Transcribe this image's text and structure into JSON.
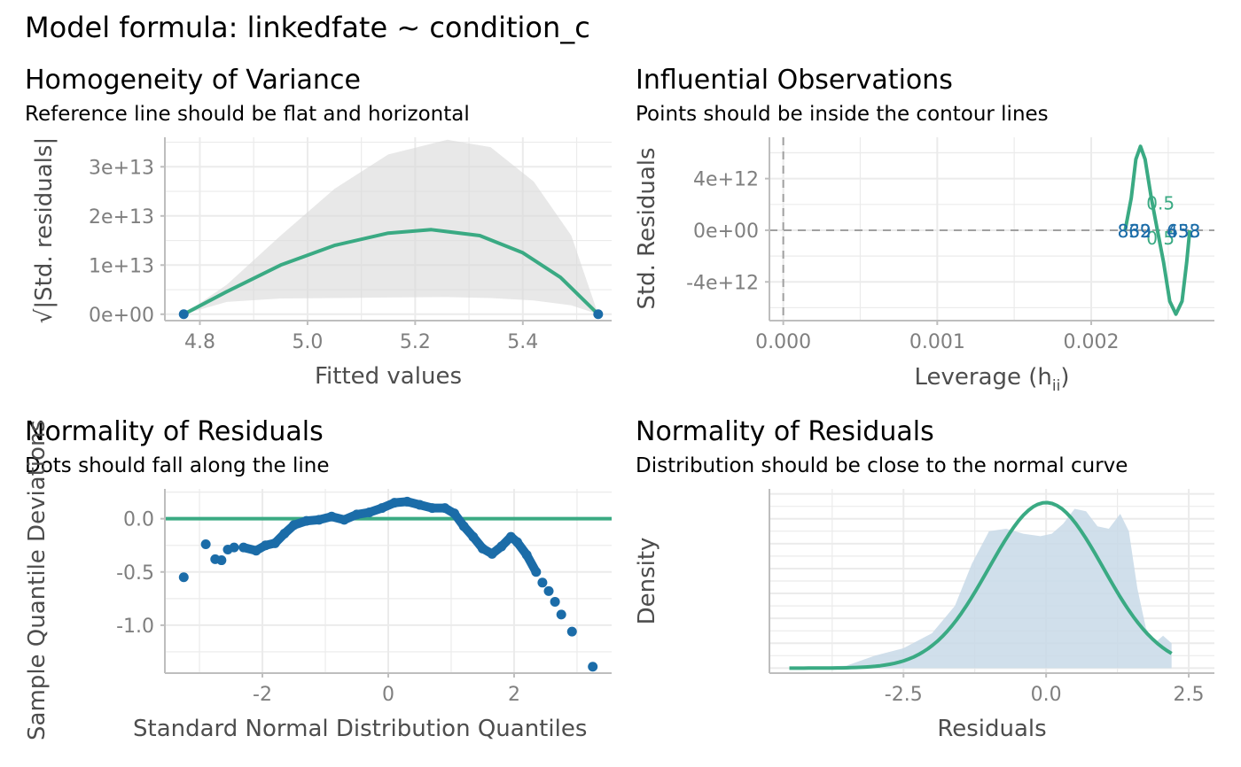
{
  "title": "Model formula: linkedfate ~ condition_c",
  "colors": {
    "accent": "#3aaa83",
    "points": "#1b6ca8",
    "band": "#d9d9d9",
    "density_fill": "#c8d9e8",
    "grid": "#ebebeb"
  },
  "chart_data": [
    {
      "type": "scatter",
      "title": "Homogeneity of Variance",
      "subtitle": "Reference line should be flat and horizontal",
      "xlabel": "Fitted values",
      "ylabel": "√|Std. residuals|",
      "xlim": [
        4.735,
        5.565
      ],
      "ylim": [
        -1300000000000.0,
        36000000000000.0
      ],
      "xticks": [
        4.8,
        5.0,
        5.2,
        5.4
      ],
      "xtick_labels": [
        "4.8",
        "5.0",
        "5.2",
        "5.4"
      ],
      "yticks": [
        0,
        10000000000000.0,
        20000000000000.0,
        30000000000000.0
      ],
      "ytick_labels": [
        "0e+00",
        "1e+13",
        "2e+13",
        "3e+13"
      ],
      "points": [
        [
          4.77,
          0
        ],
        [
          5.54,
          0
        ]
      ],
      "smooth_line": [
        [
          4.77,
          0
        ],
        [
          4.85,
          4600000000000.0
        ],
        [
          4.95,
          10000000000000.0
        ],
        [
          5.05,
          14000000000000.0
        ],
        [
          5.15,
          16500000000000.0
        ],
        [
          5.23,
          17200000000000.0
        ],
        [
          5.32,
          16000000000000.0
        ],
        [
          5.4,
          12500000000000.0
        ],
        [
          5.47,
          7500000000000.0
        ],
        [
          5.54,
          0
        ]
      ],
      "band_upper": [
        [
          4.77,
          0
        ],
        [
          4.85,
          6000000000000.0
        ],
        [
          4.95,
          16000000000000.0
        ],
        [
          5.05,
          25500000000000.0
        ],
        [
          5.15,
          32500000000000.0
        ],
        [
          5.26,
          35500000000000.0
        ],
        [
          5.34,
          34000000000000.0
        ],
        [
          5.42,
          27000000000000.0
        ],
        [
          5.49,
          16000000000000.0
        ],
        [
          5.54,
          0
        ]
      ],
      "band_lower": [
        [
          4.77,
          0
        ],
        [
          4.85,
          2500000000000.0
        ],
        [
          4.95,
          3200000000000.0
        ],
        [
          5.05,
          3300000000000.0
        ],
        [
          5.15,
          3400000000000.0
        ],
        [
          5.26,
          3500000000000.0
        ],
        [
          5.34,
          3300000000000.0
        ],
        [
          5.42,
          2800000000000.0
        ],
        [
          5.49,
          1800000000000.0
        ],
        [
          5.54,
          0
        ]
      ]
    },
    {
      "type": "scatter",
      "title": "Influential Observations",
      "subtitle": "Points should be inside the contour lines",
      "xlabel": "Leverage (h",
      "xlabel_sub": "ii",
      "xlabel_close": ")",
      "ylabel": "Std. Residuals",
      "xlim": [
        -9e-05,
        0.0028
      ],
      "ylim": [
        -7000000000000.0,
        7200000000000.0
      ],
      "xticks": [
        0,
        0.001,
        0.002
      ],
      "xtick_labels": [
        "0.000",
        "0.001",
        "0.002"
      ],
      "yticks": [
        -4000000000000.0,
        0,
        4000000000000.0
      ],
      "ytick_labels": [
        "-4e+12",
        "0e+00",
        "4e+12"
      ],
      "contour_curve": [
        [
          0.00222,
          0
        ],
        [
          0.00226,
          2500000000000.0
        ],
        [
          0.00229,
          5500000000000.0
        ],
        [
          0.00232,
          6500000000000.0
        ],
        [
          0.00235,
          5500000000000.0
        ],
        [
          0.00239,
          2500000000000.0
        ],
        [
          0.00243,
          0
        ],
        [
          0.00247,
          -2500000000000.0
        ],
        [
          0.00251,
          -5500000000000.0
        ],
        [
          0.00255,
          -6500000000000.0
        ],
        [
          0.00259,
          -5500000000000.0
        ],
        [
          0.00262,
          -2500000000000.0
        ],
        [
          0.00264,
          0
        ]
      ],
      "contour_labels": [
        {
          "text": "0.5",
          "x": 0.00245,
          "y": 1600000000000.0
        },
        {
          "text": "0.5",
          "x": 0.00245,
          "y": -1100000000000.0
        }
      ],
      "point_labels": [
        {
          "text": "832",
          "x": 0.00228,
          "y": 0
        },
        {
          "text": "869",
          "x": 0.00228,
          "y": 0
        },
        {
          "text": "438",
          "x": 0.0026,
          "y": 0
        },
        {
          "text": "653",
          "x": 0.0026,
          "y": 0
        }
      ]
    },
    {
      "type": "scatter",
      "title": "Normality of Residuals",
      "subtitle": "Dots should fall along the line",
      "xlabel": "Standard Normal Distribution Quantiles",
      "ylabel": "Sample Quantile Deviations",
      "xlim": [
        -3.55,
        3.55
      ],
      "ylim": [
        -1.45,
        0.28
      ],
      "xticks": [
        -2,
        0,
        2
      ],
      "xtick_labels": [
        "-2",
        "0",
        "2"
      ],
      "yticks": [
        -1,
        -0.5,
        0
      ],
      "ytick_labels": [
        "-1.0",
        "-0.5",
        "0.0"
      ],
      "reference_y": 0,
      "qq_curve": [
        [
          -2.3,
          -0.27
        ],
        [
          -2.1,
          -0.3
        ],
        [
          -1.95,
          -0.25
        ],
        [
          -1.8,
          -0.23
        ],
        [
          -1.65,
          -0.14
        ],
        [
          -1.5,
          -0.06
        ],
        [
          -1.3,
          -0.02
        ],
        [
          -1.1,
          -0.01
        ],
        [
          -0.9,
          0.02
        ],
        [
          -0.7,
          -0.01
        ],
        [
          -0.5,
          0.04
        ],
        [
          -0.3,
          0.06
        ],
        [
          -0.1,
          0.1
        ],
        [
          0.1,
          0.15
        ],
        [
          0.3,
          0.16
        ],
        [
          0.5,
          0.13
        ],
        [
          0.7,
          0.1
        ],
        [
          0.9,
          0.1
        ],
        [
          1.05,
          0.05
        ],
        [
          1.2,
          -0.07
        ],
        [
          1.35,
          -0.17
        ],
        [
          1.5,
          -0.28
        ],
        [
          1.65,
          -0.33
        ],
        [
          1.8,
          -0.26
        ],
        [
          1.95,
          -0.17
        ],
        [
          2.05,
          -0.22
        ],
        [
          2.2,
          -0.34
        ],
        [
          2.35,
          -0.5
        ]
      ],
      "qq_points": [
        [
          -3.25,
          -0.55
        ],
        [
          -2.9,
          -0.24
        ],
        [
          -2.75,
          -0.38
        ],
        [
          -2.65,
          -0.39
        ],
        [
          -2.55,
          -0.29
        ],
        [
          -2.45,
          -0.27
        ],
        [
          2.45,
          -0.6
        ],
        [
          2.55,
          -0.68
        ],
        [
          2.65,
          -0.78
        ],
        [
          2.75,
          -0.9
        ],
        [
          2.92,
          -1.06
        ],
        [
          3.25,
          -1.39
        ]
      ]
    },
    {
      "type": "area",
      "title": "Normality of Residuals",
      "subtitle": "Distribution should be close to the normal curve",
      "xlabel": "Residuals",
      "ylabel": "Density",
      "xlim": [
        -4.85,
        2.95
      ],
      "ylim": [
        -0.02,
        0.72
      ],
      "xticks": [
        -2.5,
        0,
        2.5
      ],
      "xtick_labels": [
        "-2.5",
        "0.0",
        "2.5"
      ],
      "density": [
        [
          -4.5,
          0
        ],
        [
          -3.5,
          0.01
        ],
        [
          -3.0,
          0.05
        ],
        [
          -2.5,
          0.08
        ],
        [
          -2.0,
          0.14
        ],
        [
          -1.6,
          0.25
        ],
        [
          -1.3,
          0.42
        ],
        [
          -1.0,
          0.55
        ],
        [
          -0.7,
          0.56
        ],
        [
          -0.4,
          0.54
        ],
        [
          -0.1,
          0.53
        ],
        [
          0.1,
          0.54
        ],
        [
          0.3,
          0.58
        ],
        [
          0.5,
          0.64
        ],
        [
          0.7,
          0.63
        ],
        [
          0.9,
          0.57
        ],
        [
          1.1,
          0.56
        ],
        [
          1.3,
          0.62
        ],
        [
          1.45,
          0.55
        ],
        [
          1.6,
          0.32
        ],
        [
          1.75,
          0.16
        ],
        [
          1.9,
          0.1
        ],
        [
          2.05,
          0.13
        ],
        [
          2.2,
          0.1
        ],
        [
          2.2,
          0
        ]
      ],
      "normal_curve": {
        "mean": 0,
        "sd": 1,
        "peak": 0.665,
        "x_from": -4.5,
        "x_to": 2.2
      }
    }
  ]
}
